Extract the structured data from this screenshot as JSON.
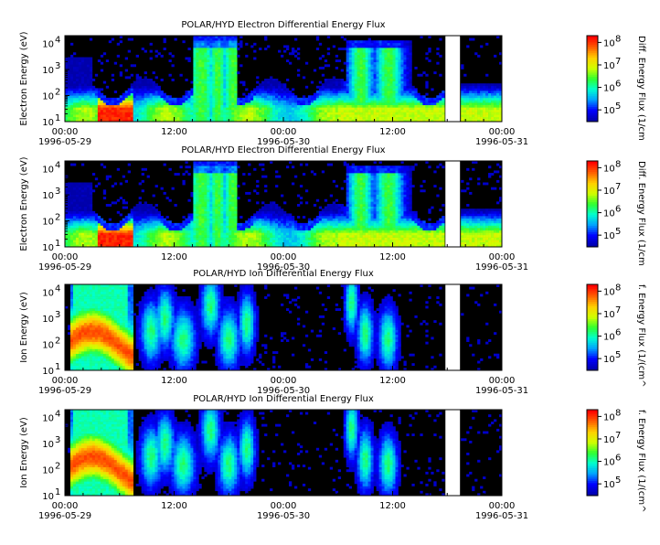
{
  "panels": [
    {
      "title": "POLAR/HYD  Electron Differential Energy Flux",
      "ylabel": "Electron Energy (eV)",
      "cblabel": "Diff. Energy Flux (1/cm",
      "species": "electron"
    },
    {
      "title": "POLAR/HYD  Electron Differential Energy Flux",
      "ylabel": "Electron Energy (eV)",
      "cblabel": "Diff. Energy Flux (1/cm",
      "species": "electron"
    },
    {
      "title": "POLAR/HYD  Ion Differential Energy Flux",
      "ylabel": "Ion Energy (eV)",
      "cblabel": "f. Energy Flux (1/(cm^",
      "species": "ion"
    },
    {
      "title": "POLAR/HYD  Ion Differential Energy Flux",
      "ylabel": "Ion Energy (eV)",
      "cblabel": "f. Energy Flux (1/(cm^",
      "species": "ion"
    }
  ],
  "x_ticks": [
    {
      "time": "00:00",
      "date": "1996-05-29"
    },
    {
      "time": "12:00",
      "date": ""
    },
    {
      "time": "00:00",
      "date": "1996-05-30"
    },
    {
      "time": "12:00",
      "date": ""
    },
    {
      "time": "00:00",
      "date": "1996-05-31"
    }
  ],
  "y_ticks": [
    {
      "base": "10",
      "exp": "1"
    },
    {
      "base": "10",
      "exp": "2"
    },
    {
      "base": "10",
      "exp": "3"
    },
    {
      "base": "10",
      "exp": "4"
    }
  ],
  "cb_ticks": [
    {
      "base": "10",
      "exp": "5"
    },
    {
      "base": "10",
      "exp": "6"
    },
    {
      "base": "10",
      "exp": "7"
    },
    {
      "base": "10",
      "exp": "8"
    }
  ],
  "chart_data": {
    "type": "heatmap",
    "x_range_hours": [
      0,
      48
    ],
    "y_range_ev": [
      10,
      20000
    ],
    "y_scale": "log",
    "colorbar_range": [
      30000,
      200000000
    ],
    "colorbar_scale": "log",
    "data_gap_hours": [
      41.8,
      43.4
    ],
    "colors": {
      "background": "#000000",
      "colormap": [
        "#0000aa",
        "#0000ff",
        "#00a0ff",
        "#00ffd0",
        "#30ff30",
        "#d0ff00",
        "#ffd000",
        "#ff6000",
        "#ff0000"
      ]
    }
  }
}
